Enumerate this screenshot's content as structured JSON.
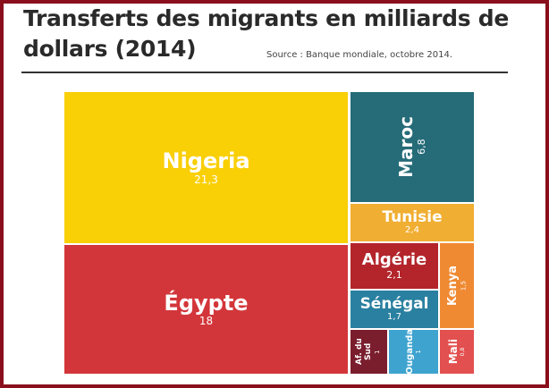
{
  "chart_data": {
    "type": "treemap",
    "title": "Transferts des migrants en milliards de dollars (2014)",
    "source": "Source : Banque mondiale, octobre 2014.",
    "items": [
      {
        "name": "Nigeria",
        "label": "21,3",
        "value": 21.3,
        "color": "#f9cf06"
      },
      {
        "name": "Égypte",
        "label": "18",
        "value": 18,
        "color": "#d3363a"
      },
      {
        "name": "Maroc",
        "label": "6,8",
        "value": 6.8,
        "color": "#256b78"
      },
      {
        "name": "Tunisie",
        "label": "2,4",
        "value": 2.4,
        "color": "#f0ae32"
      },
      {
        "name": "Algérie",
        "label": "2,1",
        "value": 2.1,
        "color": "#b3252b"
      },
      {
        "name": "Sénégal",
        "label": "1,7",
        "value": 1.7,
        "color": "#2a80a0"
      },
      {
        "name": "Kenya",
        "label": "1,5",
        "value": 1.5,
        "color": "#ef8a32"
      },
      {
        "name": "Af. du Sud",
        "label": "1",
        "value": 1,
        "color": "#7a1e2e"
      },
      {
        "name": "Ouganda",
        "label": "1",
        "value": 1,
        "color": "#3fa3cf"
      },
      {
        "name": "Mali",
        "label": "0,8",
        "value": 0.8,
        "color": "#e2504f"
      }
    ]
  }
}
